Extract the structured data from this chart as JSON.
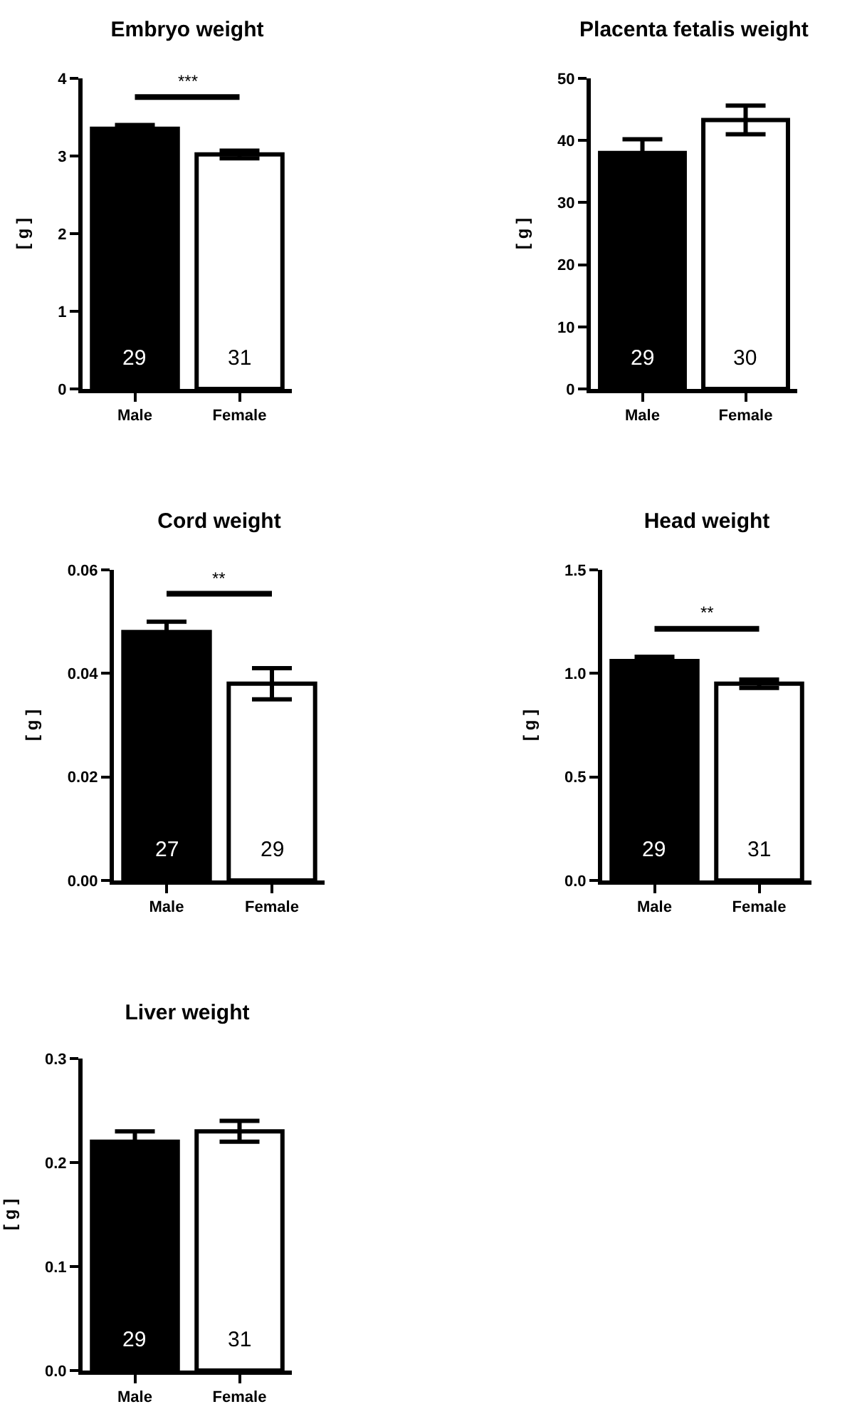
{
  "chart_data": [
    {
      "type": "bar",
      "title": "Embryo weight",
      "ylabel": "[ g ]",
      "categories": [
        "Male",
        "Female"
      ],
      "values": [
        3.35,
        3.02
      ],
      "errors": [
        0.05,
        0.05
      ],
      "colors": [
        "#000000",
        "#ffffff"
      ],
      "ylim": [
        0,
        4
      ],
      "yticks": [
        0,
        1,
        2,
        3,
        4
      ],
      "annotations": [
        "***",
        "29",
        "31"
      ]
    },
    {
      "type": "bar",
      "title": "Placenta fetalis weight",
      "ylabel": "[ g ]",
      "categories": [
        "Male",
        "Female"
      ],
      "values": [
        38,
        43.3
      ],
      "errors": [
        2.2,
        2.3
      ],
      "colors": [
        "#000000",
        "#ffffff"
      ],
      "ylim": [
        0,
        50
      ],
      "yticks": [
        0,
        10,
        20,
        30,
        40,
        50
      ],
      "annotations": [
        "29",
        "30"
      ]
    },
    {
      "type": "bar",
      "title": "Cord weight",
      "ylabel": "[ g ]",
      "categories": [
        "Male",
        "Female"
      ],
      "values": [
        0.048,
        0.038
      ],
      "errors": [
        0.002,
        0.003
      ],
      "colors": [
        "#000000",
        "#ffffff"
      ],
      "ylim": [
        0,
        0.06
      ],
      "yticks": [
        {
          "value": 0,
          "label": "0.00"
        },
        {
          "value": 0.02,
          "label": "0.02"
        },
        {
          "value": 0.04,
          "label": "0.04"
        },
        {
          "value": 0.06,
          "label": "0.06"
        }
      ],
      "annotations": [
        "**",
        "27",
        "29"
      ]
    },
    {
      "type": "bar",
      "title": "Head weight",
      "ylabel": "[ g ]",
      "categories": [
        "Male",
        "Female"
      ],
      "values": [
        1.06,
        0.95
      ],
      "errors": [
        0.02,
        0.02
      ],
      "colors": [
        "#000000",
        "#ffffff"
      ],
      "ylim": [
        0,
        1.5
      ],
      "yticks": [
        {
          "value": 0,
          "label": "0.0"
        },
        0.5,
        {
          "value": 1,
          "label": "1.0"
        },
        1.5
      ],
      "annotations": [
        "**",
        "29",
        "31"
      ]
    },
    {
      "type": "bar",
      "title": "Liver weight",
      "ylabel": "[ g ]",
      "categories": [
        "Male",
        "Female"
      ],
      "values": [
        0.22,
        0.23
      ],
      "errors": [
        0.01,
        0.01
      ],
      "colors": [
        "#000000",
        "#ffffff"
      ],
      "ylim": [
        0,
        0.3
      ],
      "yticks": [
        {
          "value": 0,
          "label": "0.0"
        },
        0.1,
        0.2,
        0.3
      ],
      "annotations": [
        "29",
        "31"
      ]
    }
  ]
}
